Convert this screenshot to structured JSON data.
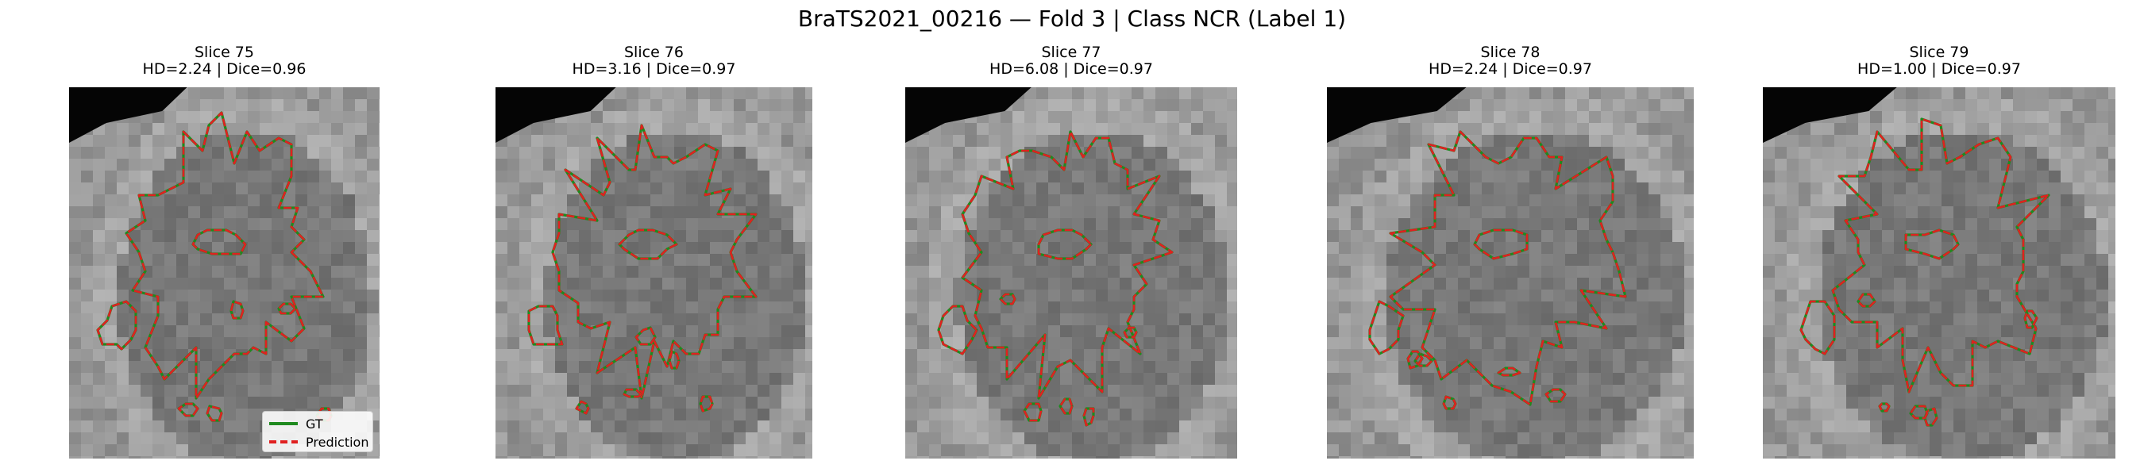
{
  "suptitle": "BraTS2021_00216 — Fold 3 | Class NCR (Label 1)",
  "colors": {
    "gt": "#1f8a1f",
    "prediction": "#e02020"
  },
  "legend": {
    "gt_label": "GT",
    "prediction_label": "Prediction"
  },
  "panels": [
    {
      "title": "Slice 75",
      "metrics": "HD=2.24 | Dice=0.96"
    },
    {
      "title": "Slice 76",
      "metrics": "HD=3.16 | Dice=0.97"
    },
    {
      "title": "Slice 77",
      "metrics": "HD=6.08 | Dice=0.97"
    },
    {
      "title": "Slice 78",
      "metrics": "HD=2.24 | Dice=0.97"
    },
    {
      "title": "Slice 79",
      "metrics": "HD=1.00 | Dice=0.97"
    }
  ]
}
